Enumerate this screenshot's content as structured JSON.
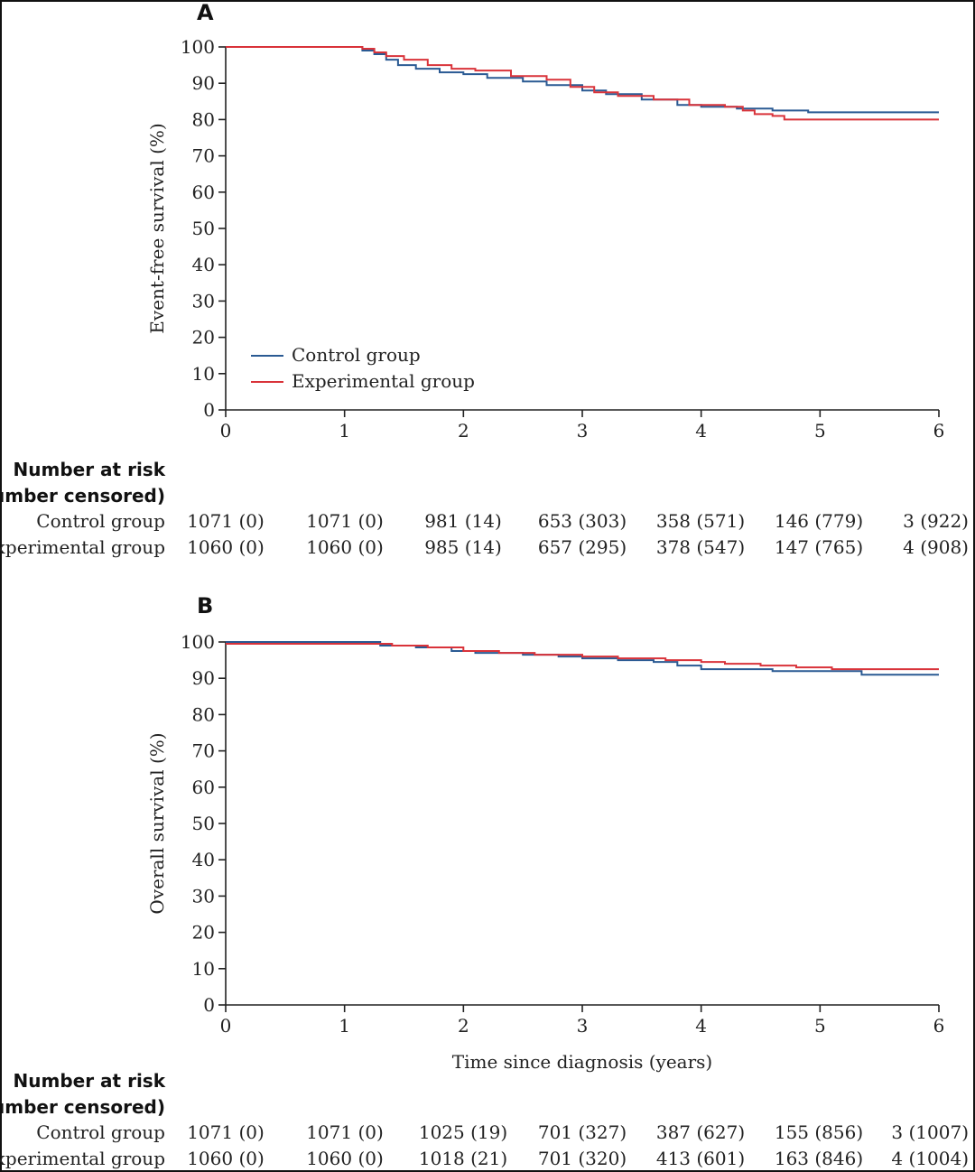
{
  "chart_data": [
    {
      "type": "line",
      "panel_label": "A",
      "ylabel": "Event-free survival (%)",
      "xlabel": "",
      "xlim": [
        0,
        6
      ],
      "ylim": [
        0,
        100
      ],
      "xticks": [
        "0",
        "1",
        "2",
        "3",
        "4",
        "5",
        "6"
      ],
      "yticks": [
        "0",
        "10",
        "20",
        "30",
        "40",
        "50",
        "60",
        "70",
        "80",
        "90",
        "100"
      ],
      "legend": {
        "placement": "bottom-left",
        "entries": [
          "Control group",
          "Experimental group"
        ]
      },
      "series": [
        {
          "name": "Control group",
          "color": "#2a5a93",
          "x": [
            0,
            1.05,
            1.15,
            1.25,
            1.35,
            1.45,
            1.6,
            1.8,
            2.0,
            2.2,
            2.5,
            2.7,
            3.0,
            3.2,
            3.5,
            3.8,
            4.0,
            4.3,
            4.6,
            4.9,
            6.0
          ],
          "y": [
            100,
            100,
            99,
            98,
            96.5,
            95,
            94,
            93,
            92.5,
            91.5,
            90.5,
            89.5,
            88,
            87,
            85.5,
            84,
            83.5,
            83,
            82.5,
            82,
            82
          ]
        },
        {
          "name": "Experimental group",
          "color": "#d9333a",
          "x": [
            0,
            1.05,
            1.15,
            1.25,
            1.35,
            1.5,
            1.7,
            1.9,
            2.1,
            2.4,
            2.7,
            2.9,
            3.1,
            3.3,
            3.6,
            3.9,
            4.2,
            4.35,
            4.45,
            4.6,
            4.7,
            6.0
          ],
          "y": [
            100,
            100,
            99.5,
            98.5,
            97.5,
            96.5,
            95,
            94,
            93.5,
            92,
            91,
            89,
            87.5,
            86.5,
            85.5,
            84,
            83.5,
            82.5,
            81.5,
            81,
            80,
            80
          ]
        }
      ],
      "risk_table": {
        "header": [
          "Number at risk",
          "(number censored)"
        ],
        "rows": [
          {
            "label": "Control group",
            "values": [
              "1071 (0)",
              "1071 (0)",
              "981 (14)",
              "653 (303)",
              "358 (571)",
              "146 (779)",
              "3 (922)"
            ]
          },
          {
            "label": "Experimental group",
            "values": [
              "1060 (0)",
              "1060 (0)",
              "985 (14)",
              "657 (295)",
              "378 (547)",
              "147 (765)",
              "4 (908)"
            ]
          }
        ]
      }
    },
    {
      "type": "line",
      "panel_label": "B",
      "ylabel": "Overall survival (%)",
      "xlabel": "Time since diagnosis (years)",
      "xlim": [
        0,
        6
      ],
      "ylim": [
        0,
        100
      ],
      "xticks": [
        "0",
        "1",
        "2",
        "3",
        "4",
        "5",
        "6"
      ],
      "yticks": [
        "0",
        "10",
        "20",
        "30",
        "40",
        "50",
        "60",
        "70",
        "80",
        "90",
        "100"
      ],
      "series": [
        {
          "name": "Control group",
          "color": "#2a5a93",
          "x": [
            0,
            1.1,
            1.3,
            1.6,
            1.9,
            2.1,
            2.5,
            2.8,
            3.0,
            3.3,
            3.6,
            3.8,
            4.0,
            4.3,
            4.6,
            5.0,
            5.35,
            6.0
          ],
          "y": [
            100,
            100,
            99,
            98.5,
            97.5,
            97,
            96.5,
            96,
            95.5,
            95,
            94.5,
            93.5,
            92.5,
            92.5,
            92,
            92,
            91,
            91
          ]
        },
        {
          "name": "Experimental group",
          "color": "#d9333a",
          "x": [
            0,
            1.1,
            1.4,
            1.7,
            2.0,
            2.3,
            2.6,
            3.0,
            3.3,
            3.7,
            4.0,
            4.2,
            4.5,
            4.8,
            5.1,
            6.0
          ],
          "y": [
            99.5,
            99.5,
            99,
            98.5,
            97.5,
            97,
            96.5,
            96,
            95.5,
            95,
            94.5,
            94,
            93.5,
            93,
            92.5,
            92.5
          ]
        }
      ],
      "risk_table": {
        "header": [
          "Number at risk",
          "(number censored)"
        ],
        "rows": [
          {
            "label": "Control group",
            "values": [
              "1071 (0)",
              "1071 (0)",
              "1025 (19)",
              "701 (327)",
              "387 (627)",
              "155 (856)",
              "3 (1007)"
            ]
          },
          {
            "label": "Experimental group",
            "values": [
              "1060 (0)",
              "1060 (0)",
              "1018 (21)",
              "701 (320)",
              "413 (601)",
              "163 (846)",
              "4 (1004)"
            ]
          }
        ]
      }
    }
  ]
}
